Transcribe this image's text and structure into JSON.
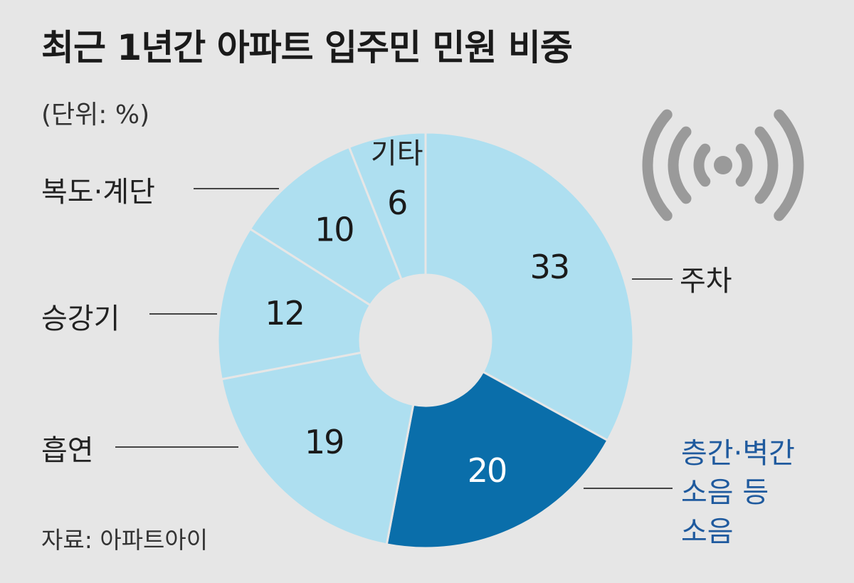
{
  "title": "최근 1년간 아파트 입주민 민원 비중",
  "unit": "(단위: %)",
  "source": "자료: 아파트아이",
  "colors": {
    "background": "#e6e6e6",
    "slice_light": "#aedff0",
    "slice_highlight": "#0a6eaa",
    "highlight_text": "#1f5a9e",
    "icon": "#9a9a9a"
  },
  "icon": "broadcast-signal-icon",
  "chart_data": {
    "type": "pie",
    "donut": true,
    "unit": "%",
    "slices": [
      {
        "label": "주차",
        "value": 33,
        "highlight": false
      },
      {
        "label": "층간·벽간 소음 등 소음",
        "label_lines": [
          "층간·벽간",
          "소음 등",
          "소음"
        ],
        "value": 20,
        "highlight": true
      },
      {
        "label": "흡연",
        "value": 19,
        "highlight": false
      },
      {
        "label": "승강기",
        "value": 12,
        "highlight": false
      },
      {
        "label": "복도·계단",
        "value": 10,
        "highlight": false
      },
      {
        "label": "기타",
        "value": 6,
        "highlight": false
      }
    ]
  }
}
